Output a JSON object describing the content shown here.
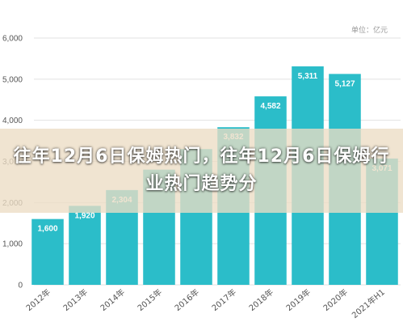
{
  "overlay": {
    "headline": "往年12月6日保姆热门，往年12月6日保姆行业热门趋势分"
  },
  "chart_data": {
    "type": "bar",
    "unit_label": "单位：亿元",
    "categories": [
      "2012年",
      "2013年",
      "2014年",
      "2015年",
      "2016年",
      "2017年",
      "2018年",
      "2019年",
      "2020年",
      "2021年H1"
    ],
    "values": [
      1600,
      1920,
      2304,
      2800,
      3300,
      3832,
      4582,
      5311,
      5127,
      3071
    ],
    "data_labels": [
      "1,600",
      "1,920",
      "2,304",
      "",
      "",
      "3,832",
      "4,582",
      "5,311",
      "5,127",
      "3,071"
    ],
    "yticks": [
      0,
      1000,
      2000,
      3000,
      4000,
      5000,
      6000
    ],
    "ytick_labels": [
      "0",
      "1,000",
      "2,000",
      "3,000",
      "4,000",
      "5,000",
      "6,000"
    ],
    "ylim": [
      0,
      6000
    ],
    "grid": true,
    "bar_color": "#2bbdc9"
  }
}
